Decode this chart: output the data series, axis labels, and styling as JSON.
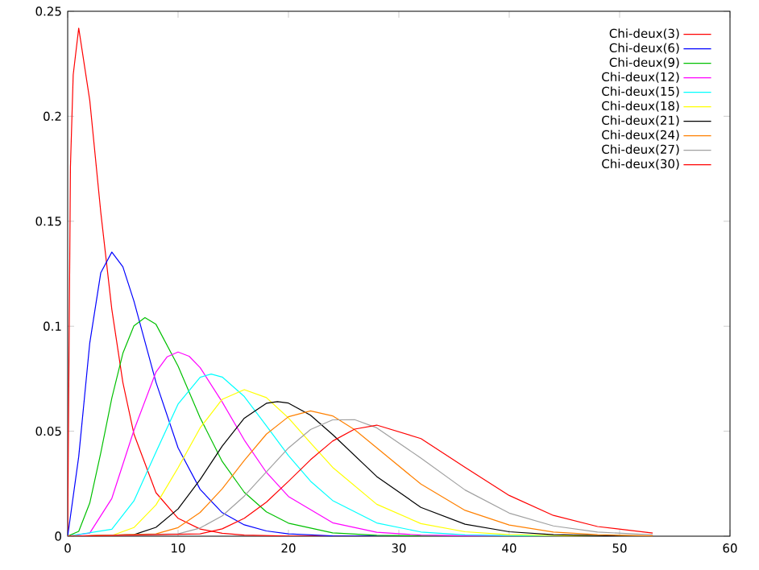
{
  "chart_data": {
    "type": "line",
    "xlim": [
      0,
      60
    ],
    "ylim": [
      0,
      0.25
    ],
    "xticks": [
      0,
      10,
      20,
      30,
      40,
      50,
      60
    ],
    "yticks": [
      0,
      0.05,
      0.1,
      0.15,
      0.2,
      0.25
    ],
    "legend": "top right",
    "marker": "none",
    "line_style": "solid",
    "grid": false,
    "series": [
      {
        "name": "Chi-deux(3)",
        "color": "#ff0000",
        "x": [
          0,
          0.25,
          0.5,
          1,
          2,
          3,
          4,
          5,
          6,
          8,
          10,
          12,
          14,
          16,
          20,
          30,
          53
        ],
        "values": [
          0,
          0.176,
          0.2197,
          0.242,
          0.2076,
          0.1542,
          0.108,
          0.0732,
          0.0487,
          0.0207,
          0.0085,
          0.0034,
          0.0014,
          0.0005,
          0.0001,
          0,
          0
        ]
      },
      {
        "name": "Chi-deux(6)",
        "color": "#0000ff",
        "x": [
          0,
          1,
          2,
          3,
          4,
          5,
          6,
          8,
          10,
          12,
          14,
          16,
          18,
          20,
          24,
          30,
          53
        ],
        "values": [
          0,
          0.0379,
          0.092,
          0.1255,
          0.1353,
          0.1283,
          0.112,
          0.0733,
          0.0421,
          0.0223,
          0.0112,
          0.0054,
          0.0025,
          0.0011,
          0.0002,
          0,
          0
        ]
      },
      {
        "name": "Chi-deux(9)",
        "color": "#00c000",
        "x": [
          0,
          1,
          2,
          3,
          4,
          5,
          6,
          7,
          8,
          10,
          12,
          14,
          16,
          18,
          20,
          24,
          28,
          35,
          53
        ],
        "values": [
          0,
          0.0023,
          0.0158,
          0.0397,
          0.0658,
          0.0871,
          0.1002,
          0.1041,
          0.1009,
          0.081,
          0.0564,
          0.0356,
          0.0209,
          0.0116,
          0.0062,
          0.0016,
          0.0004,
          0,
          0
        ]
      },
      {
        "name": "Chi-deux(12)",
        "color": "#ff00ff",
        "x": [
          0,
          2,
          4,
          6,
          8,
          9,
          10,
          11,
          12,
          14,
          16,
          18,
          20,
          24,
          28,
          32,
          40,
          53
        ],
        "values": [
          0,
          0.0015,
          0.018,
          0.0504,
          0.0782,
          0.0854,
          0.0877,
          0.0857,
          0.0803,
          0.0639,
          0.0458,
          0.0304,
          0.0189,
          0.0064,
          0.0019,
          0.0005,
          0,
          0
        ]
      },
      {
        "name": "Chi-deux(15)",
        "color": "#00ffff",
        "x": [
          0,
          4,
          6,
          8,
          10,
          12,
          13,
          14,
          16,
          18,
          20,
          22,
          24,
          28,
          32,
          36,
          45,
          53
        ],
        "values": [
          0,
          0.0033,
          0.0168,
          0.0401,
          0.0629,
          0.0757,
          0.0772,
          0.0758,
          0.0665,
          0.0526,
          0.0384,
          0.0262,
          0.017,
          0.0063,
          0.002,
          0.0006,
          0,
          0
        ]
      },
      {
        "name": "Chi-deux(18)",
        "color": "#ffff00",
        "x": [
          0,
          4,
          6,
          8,
          10,
          12,
          14,
          16,
          18,
          20,
          22,
          24,
          28,
          32,
          36,
          40,
          48,
          53
        ],
        "values": [
          0,
          0.0003,
          0.0041,
          0.0149,
          0.0326,
          0.0516,
          0.0652,
          0.0698,
          0.066,
          0.0563,
          0.0444,
          0.0328,
          0.0152,
          0.006,
          0.0021,
          0.0007,
          0,
          0
        ]
      },
      {
        "name": "Chi-deux(21)",
        "color": "#000000",
        "x": [
          0,
          6,
          8,
          10,
          12,
          14,
          16,
          18,
          19,
          20,
          22,
          24,
          28,
          32,
          36,
          40,
          44,
          50,
          53
        ],
        "values": [
          0,
          0.0007,
          0.0042,
          0.013,
          0.027,
          0.0429,
          0.0562,
          0.0633,
          0.0641,
          0.0634,
          0.0576,
          0.0484,
          0.0284,
          0.0137,
          0.0057,
          0.0021,
          0.0007,
          0.0001,
          0
        ]
      },
      {
        "name": "Chi-deux(24)",
        "color": "#ff8000",
        "x": [
          0,
          8,
          10,
          12,
          14,
          16,
          18,
          20,
          22,
          24,
          26,
          28,
          32,
          36,
          40,
          44,
          48,
          53
        ],
        "values": [
          0,
          0.0011,
          0.0041,
          0.0113,
          0.0226,
          0.0361,
          0.0486,
          0.0569,
          0.0597,
          0.0573,
          0.0507,
          0.0421,
          0.0248,
          0.0123,
          0.0053,
          0.002,
          0.0007,
          0.0002
        ]
      },
      {
        "name": "Chi-deux(27)",
        "color": "#a0a0a0",
        "x": [
          0,
          10,
          12,
          14,
          16,
          18,
          20,
          22,
          24,
          26,
          28,
          32,
          36,
          40,
          44,
          48,
          53
        ],
        "values": [
          0,
          0.0011,
          0.0039,
          0.0097,
          0.0191,
          0.0306,
          0.042,
          0.0508,
          0.0554,
          0.0555,
          0.0516,
          0.0372,
          0.022,
          0.011,
          0.0049,
          0.002,
          0.0006
        ]
      },
      {
        "name": "Chi-deux(30)",
        "color": "#ff0000",
        "x": [
          0,
          12,
          14,
          16,
          18,
          20,
          22,
          24,
          26,
          28,
          32,
          36,
          40,
          44,
          48,
          53
        ],
        "values": [
          0,
          0.0011,
          0.0035,
          0.0085,
          0.0162,
          0.0261,
          0.0364,
          0.0453,
          0.051,
          0.0529,
          0.0465,
          0.0328,
          0.0194,
          0.0099,
          0.0046,
          0.0015
        ]
      }
    ]
  }
}
